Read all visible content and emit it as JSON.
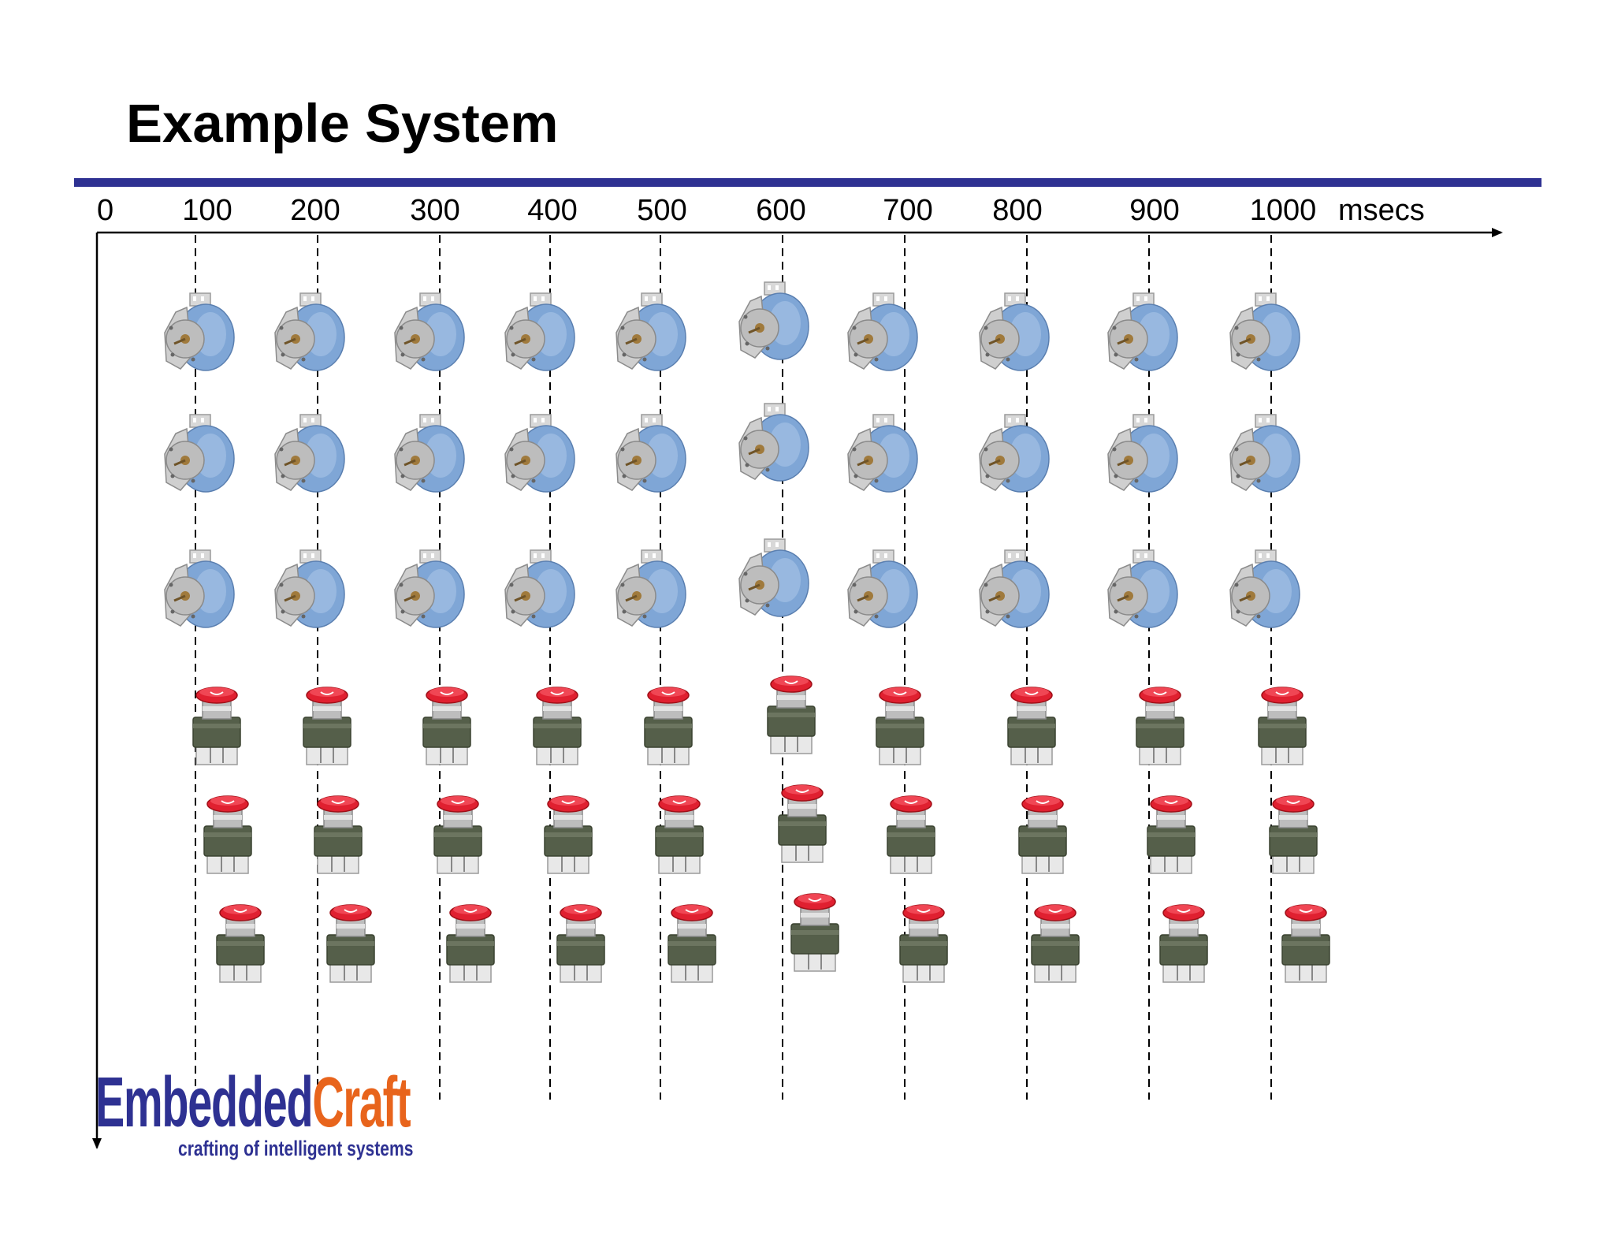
{
  "slide": {
    "title": "Example System"
  },
  "timeline": {
    "ticks": [
      "0",
      "100",
      "200",
      "300",
      "400",
      "500",
      "600",
      "700",
      "800",
      "900",
      "1000"
    ],
    "unit": "msecs"
  },
  "devices": {
    "motor_rows": 3,
    "button_rows": 3,
    "per_row": 10,
    "motor_icon": "stepper-motor-icon",
    "button_icon": "emergency-stop-button-icon"
  },
  "logo": {
    "word_part1": "Embedded",
    "word_part2": "Craft",
    "tagline": "crafting of intelligent systems"
  },
  "colors": {
    "title_rule": "#2e3192",
    "logo_blue": "#2e3192",
    "logo_orange": "#e8641c",
    "motor_body": "#7fa6d6",
    "button_red": "#e02030"
  }
}
